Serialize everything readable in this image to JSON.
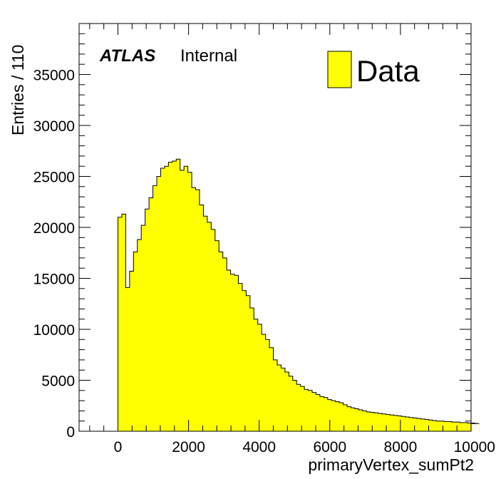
{
  "chart_data": {
    "type": "histogram",
    "title": "",
    "xlabel": "primaryVertex_sumPt2",
    "ylabel": "Entries / 110",
    "xlim": [
      -1100,
      10000
    ],
    "ylim": [
      0,
      40000
    ],
    "grid": false,
    "legend_position": "top-right",
    "colors": {
      "fill": "#ffff00",
      "line": "#000000",
      "frame": "#000000"
    },
    "annotation": {
      "bold": "ATLAS",
      "normal": "Internal"
    },
    "series": [
      {
        "name": "Data",
        "bin_width": 110,
        "x_start": 0,
        "values": [
          21000,
          21300,
          14100,
          15700,
          17600,
          18800,
          20200,
          21800,
          22900,
          24100,
          25000,
          25800,
          26000,
          26400,
          26500,
          26700,
          25600,
          26000,
          25400,
          23900,
          23700,
          22200,
          21100,
          20500,
          19800,
          18700,
          17600,
          17000,
          15800,
          15400,
          15300,
          14500,
          13800,
          13300,
          12100,
          11000,
          10500,
          9500,
          9000,
          8200,
          7000,
          6500,
          6200,
          5800,
          5400,
          5000,
          4600,
          4400,
          4100,
          4000,
          3800,
          3600,
          3400,
          3300,
          3100,
          3000,
          2900,
          2800,
          2600,
          2400,
          2300,
          2200,
          2100,
          2000,
          1900,
          1850,
          1800,
          1750,
          1700,
          1650,
          1600,
          1550,
          1500,
          1450,
          1400,
          1350,
          1300,
          1250,
          1200,
          1150,
          1100,
          1050,
          1000,
          1000,
          950,
          950,
          900,
          900,
          850,
          850,
          800,
          800,
          800,
          750
        ]
      }
    ],
    "x_ticks": [
      "0",
      "2000",
      "4000",
      "6000",
      "8000",
      "10000"
    ],
    "y_ticks": [
      "0",
      "5000",
      "10000",
      "15000",
      "20000",
      "25000",
      "30000",
      "35000"
    ]
  }
}
